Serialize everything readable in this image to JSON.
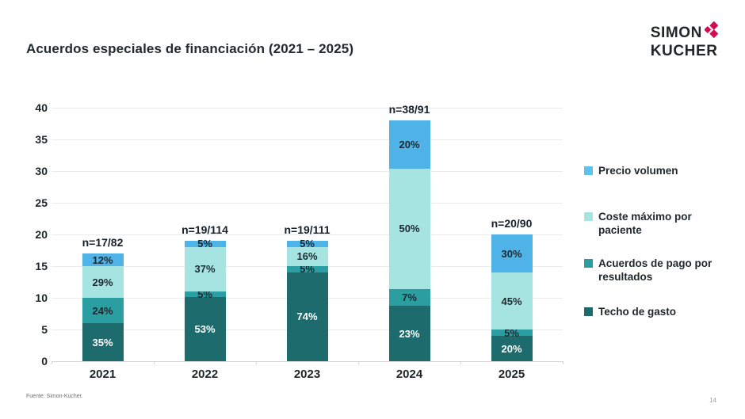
{
  "page": {
    "title": "Acuerdos especiales de financiación (2021 – 2025)",
    "footer_source": "Fuente: Simon-Kucher.",
    "page_number": "14"
  },
  "logo": {
    "line1": "SIMON",
    "line2": "KUCHER",
    "diamond_color": "#d60a4f",
    "text_color": "#20262a"
  },
  "chart_data": {
    "type": "bar",
    "stacked": true,
    "title": "Acuerdos especiales de financiación (2021 – 2025)",
    "categories": [
      "2021",
      "2022",
      "2023",
      "2024",
      "2025"
    ],
    "n_labels": [
      "n=17/82",
      "n=19/114",
      "n=19/111",
      "n=38/91",
      "n=20/90"
    ],
    "totals": [
      17,
      19,
      19,
      38,
      20
    ],
    "series": [
      {
        "name": "Techo de gasto",
        "color": "#1e6b6e",
        "label_color": "#ffffff",
        "pct": [
          35,
          53,
          74,
          23,
          20
        ]
      },
      {
        "name": "Acuerdos de pago por resultados",
        "color": "#2a9ea0",
        "label_color": "#1c2930",
        "pct": [
          24,
          5,
          5,
          7,
          5
        ]
      },
      {
        "name": "Coste máximo por paciente",
        "color": "#a6e4e2",
        "label_color": "#1c2930",
        "pct": [
          29,
          37,
          16,
          50,
          45
        ]
      },
      {
        "name": "Precio volumen",
        "color": "#4fb3e8",
        "label_color": "#1c2930",
        "pct": [
          12,
          5,
          5,
          20,
          30
        ]
      }
    ],
    "legend": [
      {
        "label": "Precio volumen",
        "color": "#5fc2ec"
      },
      {
        "label": "Coste máximo por paciente",
        "color": "#a6e4e2"
      },
      {
        "label": "Acuerdos de pago por resultados",
        "color": "#2a9ea0"
      },
      {
        "label": "Techo de gasto",
        "color": "#1e6b6e"
      }
    ],
    "ylabel": "",
    "xlabel": "",
    "ylim": [
      0,
      40
    ],
    "yticks": [
      0,
      5,
      10,
      15,
      20,
      25,
      30,
      35,
      40
    ],
    "grid": true,
    "legend_position": "right",
    "value_label_format": "percent"
  }
}
